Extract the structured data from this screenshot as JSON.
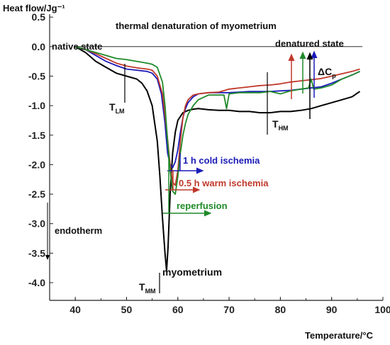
{
  "chart_data": {
    "type": "line",
    "title": "thermal denaturation of myometrium",
    "xlabel": "Temperature/°C",
    "ylabel": "Heat flow/Jg⁻¹",
    "xlim": [
      35,
      100
    ],
    "ylim": [
      -4.3,
      0.55
    ],
    "xticks": [
      "40",
      "50",
      "60",
      "70",
      "80",
      "90",
      "100"
    ],
    "yticks": [
      "0.5",
      "0.0",
      "-0.5",
      "-1.0",
      "-1.5",
      "-2.0",
      "-2.5",
      "-3.0",
      "-3.5",
      "-4.0"
    ],
    "grid": false,
    "series": [
      {
        "name": "myometrium",
        "color": "#000000",
        "x": [
          40,
          42,
          44,
          46,
          48,
          50,
          52,
          53,
          54,
          55,
          56,
          56.5,
          57,
          57.5,
          57.8,
          58.1,
          58.5,
          59,
          59.5,
          60,
          61,
          62,
          63,
          64,
          66,
          68,
          70,
          72,
          74,
          76,
          78,
          80,
          82,
          84,
          86,
          88,
          90,
          92,
          94,
          95.5
        ],
        "y": [
          0.0,
          -0.1,
          -0.25,
          -0.35,
          -0.45,
          -0.5,
          -0.55,
          -0.62,
          -0.75,
          -1.0,
          -1.6,
          -2.2,
          -2.9,
          -3.5,
          -3.8,
          -3.4,
          -2.5,
          -1.8,
          -1.45,
          -1.25,
          -1.12,
          -1.08,
          -1.06,
          -1.05,
          -1.07,
          -1.08,
          -1.08,
          -1.1,
          -1.1,
          -1.12,
          -1.12,
          -1.1,
          -1.1,
          -1.08,
          -1.05,
          -1.0,
          -0.95,
          -0.9,
          -0.85,
          -0.76
        ]
      },
      {
        "name": "1 h cold ischemia",
        "color": "#1a1ab8",
        "x": [
          40,
          42,
          44,
          46,
          48,
          50,
          52,
          54,
          55,
          56,
          56.8,
          57.5,
          58,
          58.5,
          59,
          59.5,
          60,
          60.5,
          61,
          61.5,
          62,
          63,
          64,
          66,
          68,
          70,
          72,
          74,
          76,
          78,
          80,
          82,
          84,
          86,
          88,
          90,
          92,
          94,
          95.5
        ],
        "y": [
          0.0,
          -0.05,
          -0.15,
          -0.25,
          -0.32,
          -0.38,
          -0.4,
          -0.42,
          -0.45,
          -0.55,
          -0.8,
          -1.3,
          -1.8,
          -2.0,
          -2.05,
          -1.95,
          -1.75,
          -1.45,
          -1.2,
          -1.05,
          -0.95,
          -0.85,
          -0.8,
          -0.78,
          -0.78,
          -0.78,
          -0.77,
          -0.76,
          -0.76,
          -0.76,
          -0.75,
          -0.74,
          -0.72,
          -0.7,
          -0.68,
          -0.62,
          -0.55,
          -0.48,
          -0.42
        ]
      },
      {
        "name": "0.5 h warm ischemia",
        "color": "#c0392b",
        "x": [
          40,
          42,
          44,
          46,
          48,
          50,
          52,
          54,
          55,
          56,
          57,
          57.8,
          58.5,
          59,
          59.5,
          60,
          60.5,
          61,
          61.5,
          62,
          63,
          64,
          66,
          68,
          70,
          72,
          74,
          76,
          78,
          80,
          82,
          84,
          86,
          88,
          90,
          92,
          94,
          95.5
        ],
        "y": [
          0.0,
          -0.05,
          -0.12,
          -0.2,
          -0.28,
          -0.33,
          -0.36,
          -0.38,
          -0.4,
          -0.5,
          -0.8,
          -1.4,
          -2.0,
          -2.3,
          -2.35,
          -2.1,
          -1.6,
          -1.2,
          -1.0,
          -0.9,
          -0.82,
          -0.8,
          -0.78,
          -0.77,
          -0.72,
          -0.7,
          -0.68,
          -0.66,
          -0.65,
          -0.63,
          -0.6,
          -0.58,
          -0.56,
          -0.54,
          -0.5,
          -0.46,
          -0.42,
          -0.38
        ]
      },
      {
        "name": "reperfusion",
        "color": "#1f8a2a",
        "x": [
          40,
          42,
          44,
          46,
          48,
          50,
          52,
          54,
          55,
          56,
          57,
          57.5,
          58,
          58.5,
          59,
          59.5,
          60,
          60.5,
          61,
          61.5,
          62,
          63,
          64,
          66,
          68,
          69,
          69.5,
          70,
          72,
          74,
          76,
          78,
          80,
          82,
          84,
          85.5,
          86,
          86.5,
          88,
          90,
          92,
          94,
          95.5
        ],
        "y": [
          0.0,
          -0.05,
          -0.1,
          -0.15,
          -0.2,
          -0.22,
          -0.25,
          -0.28,
          -0.3,
          -0.35,
          -0.6,
          -1.0,
          -1.6,
          -2.1,
          -2.45,
          -2.5,
          -2.2,
          -1.8,
          -1.5,
          -1.3,
          -1.15,
          -1.0,
          -0.9,
          -0.82,
          -0.82,
          -0.82,
          -1.05,
          -0.8,
          -0.78,
          -0.78,
          -0.78,
          -0.76,
          -0.8,
          -0.75,
          -0.72,
          -0.7,
          -0.55,
          -0.72,
          -0.7,
          -0.65,
          -0.55,
          -0.48,
          -0.42
        ]
      }
    ],
    "annotations": {
      "native_state": "native state",
      "denatured_state": "denatured state",
      "endotherm": "endotherm",
      "t_lm": {
        "main": "T",
        "sub": "LM"
      },
      "t_hm": {
        "main": "T",
        "sub": "HM"
      },
      "t_mm": {
        "main": "T",
        "sub": "MM"
      },
      "delta_cp": {
        "main": "ΔC",
        "sub": "p"
      },
      "label_myometrium": "myometrium",
      "label_cold": "1 h cold ischemia",
      "label_warm": "0.5 h warm ischemia",
      "label_reperfusion": "reperfusion"
    },
    "colors": {
      "myometrium": "#000000",
      "cold": "#1a1ab8",
      "warm": "#c0392b",
      "reperfusion": "#1f8a2a"
    }
  }
}
